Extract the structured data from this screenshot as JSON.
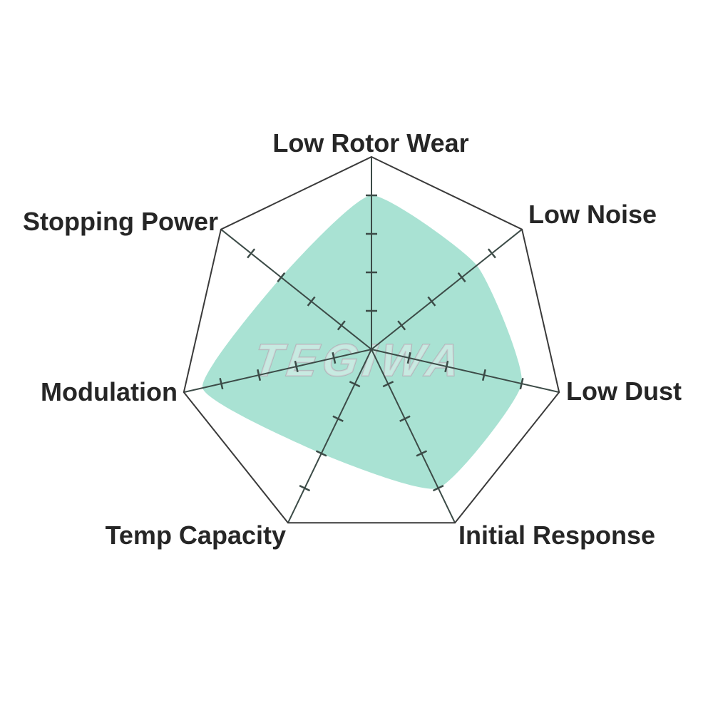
{
  "page": {
    "background_color": "#ffffff"
  },
  "watermark": {
    "text": "TEGIWA",
    "stroke_color": "#aeb9bb",
    "fill_color": "rgba(245,248,248,0.40)"
  },
  "chart_data": {
    "type": "radar",
    "title": "",
    "legend": "none",
    "categories": [
      "Low Rotor Wear",
      "Low Noise",
      "Low Dust",
      "Initial Response",
      "Temp Capacity",
      "Modulation",
      "Stopping Power"
    ],
    "values": [
      8,
      7,
      8,
      8,
      6,
      9,
      6
    ],
    "scale": {
      "min": 0,
      "max": 10,
      "tick_values": [
        2,
        4,
        6,
        8
      ],
      "tick_labels_visible": false
    },
    "grid": {
      "outer_polygon": true,
      "inner_rings": false,
      "spokes": true
    },
    "style": {
      "fill_color": "#A9E2D3",
      "outline_color": "#3a3a3a",
      "spoke_color": "#3c4b47",
      "tick_color": "#3c4b47",
      "label_color": "#262626",
      "smooth_area": true
    }
  }
}
